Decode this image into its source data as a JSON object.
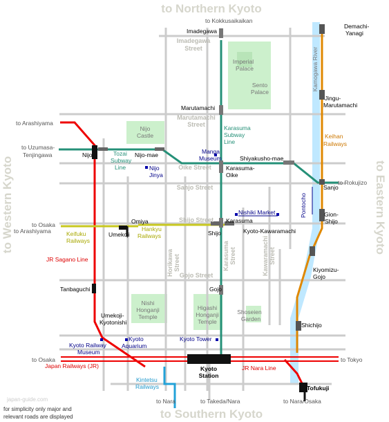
{
  "directions": {
    "north": "to Northern Kyoto",
    "south": "to Southern Kyoto",
    "west": "to Western Kyoto",
    "east": "to Eastern Kyoto"
  },
  "streets": {
    "imadegawa_1": "Imadegawa",
    "imadegawa_2": "Street",
    "marutamachi_1": "Marutamachi",
    "marutamachi_2": "Street",
    "oike": "Oike Street",
    "sanjo": "Sanjo Street",
    "shijo": "Shijo Street",
    "gojo": "Gojo Street",
    "horikawa_1": "Horikawa",
    "horikawa_2": "Street",
    "karasuma_1": "Karasuma",
    "karasuma_2": "Street",
    "kawaramachi_1": "Kawaramachi",
    "kawaramachi_2": "Street"
  },
  "destinations": {
    "kokkusaikaikan": "to Kokkusaikaikan",
    "arashiyama": "to Arashiyama",
    "uzumasa_1": "to Uzumasa-",
    "uzumasa_2": "Tenjingawa",
    "osaka": "to Osaka",
    "rokujizo": "to Rokujizo",
    "tokyo": "to Tokyo",
    "nara": "to Nara",
    "takeda_nara": "to Takeda/Nara",
    "nara_osaka": "to Nara/Osaka"
  },
  "stations": {
    "imadegawa": "Imadegawa",
    "marutamachi": "Marutamachi",
    "nijo": "Nijo",
    "nijo_mae": "Nijo-mae",
    "shiyakusho_mae": "Shiyakusho-mae",
    "karasuma_oike_1": "Karasuma-",
    "karasuma_oike_2": "Oike",
    "sanjo": "Sanjo",
    "demachi_yanagi_1": "Demachi-",
    "demachi_yanagi_2": "Yanagi",
    "jingu_marutamachi_1": "Jingu-",
    "jingu_marutamachi_2": "Marutamachi",
    "gion_shijo_1": "Gion-",
    "gion_shijo_2": "Shijo",
    "kiyomizu_gojo_1": "Kiyomizu-",
    "kiyomizu_gojo_2": "Gojo",
    "shichijo": "Shichijo",
    "omiya": "Omiya",
    "umekoji": "Umekoji",
    "karasuma": "Karasuma",
    "shijo": "Shijo",
    "kyoto_kawaramachi": "Kyoto-Kawaramachi",
    "gojo": "Gojo",
    "tanbaguchi": "Tanbaguchi",
    "umekoji_kyotonishi_1": "Umekoji-",
    "umekoji_kyotonishi_2": "Kyotonishi",
    "kyoto_1": "Kyoto",
    "kyoto_2": "Station",
    "tofukuji": "Tofukuji"
  },
  "lines": {
    "karasuma_1": "Karasuma",
    "karasuma_2": "Subway",
    "karasuma_3": "Line",
    "tozai_1": "Tozai",
    "tozai_2": "Subway",
    "tozai_3": "Line",
    "keihan_1": "Keihan",
    "keihan_2": "Railways",
    "hankyu_1": "Hankyu",
    "hankyu_2": "Railways",
    "keifuku_1": "Keifuku",
    "keifuku_2": "Railways",
    "jr_sagano": "JR Sagano Line",
    "japan_railways": "Japan Railways (JR)",
    "jr_nara": "JR Nara Line",
    "kintetsu_1": "Kintetsu",
    "kintetsu_2": "Railways"
  },
  "pois": {
    "manga_1": "Manga",
    "manga_2": "Museum",
    "nijo_jinya_1": "Nijo",
    "nijo_jinya_2": "Jinya",
    "nishiki": "Nishiki Market",
    "pontocho": "Pontocho",
    "aquarium_1": "Kyoto",
    "aquarium_2": "Aquarium",
    "tower": "Kyoto Tower",
    "railway_museum_1": "Kyoto Railway",
    "railway_museum_2": "Museum"
  },
  "parks": {
    "imperial_1": "Imperial",
    "imperial_2": "Palace",
    "sento_1": "Sento",
    "sento_2": "Palace",
    "nijo_castle_1": "Nijo",
    "nijo_castle_2": "Castle",
    "nishi_1": "Nishi",
    "nishi_2": "Honganji",
    "nishi_3": "Temple",
    "higashi_1": "Higashi",
    "higashi_2": "Honganji",
    "higashi_3": "Temple",
    "shoseien_1": "Shoseien",
    "shoseien_2": "Garden"
  },
  "river": "Kamogawa River",
  "watermark": "japan-guide.com",
  "note": {
    "line1": "for simplicity only major and",
    "line2": "relevant roads are displayed"
  },
  "colors": {
    "jr": "#ee0000",
    "subway": "#259078",
    "keihan": "#e08800",
    "hankyu_keifuku": "#c8c820",
    "kintetsu": "#22a2d8",
    "river": "#bfe8ff",
    "park": "#ccf0cc",
    "street": "#cccccc"
  }
}
